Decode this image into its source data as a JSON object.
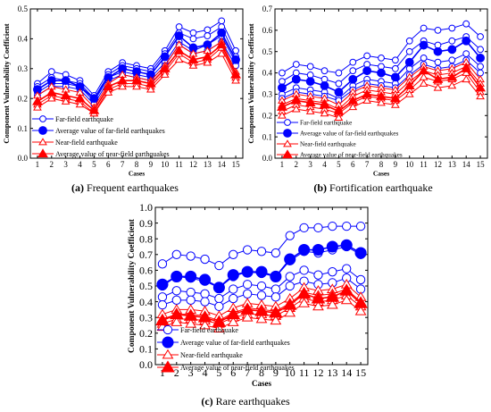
{
  "chart_data": [
    {
      "type": "line",
      "caption_label": "(a)",
      "caption_text": " Frequent earthquakes",
      "xlabel": "Cases",
      "ylabel": "Component Vulnerability Coefficient",
      "ylim": [
        0.0,
        0.5
      ],
      "yticks": [
        0.0,
        0.1,
        0.2,
        0.3,
        0.4,
        0.5
      ],
      "ytick_labels": [
        "0.0",
        "0.1",
        "0.2",
        "0.3",
        "0.4",
        "0.5"
      ],
      "x": [
        1,
        2,
        3,
        4,
        5,
        6,
        7,
        8,
        9,
        10,
        11,
        12,
        13,
        14,
        15
      ],
      "legend": [
        "Far-field earthquake",
        "Average value of far-field earthquakes",
        "Near-field earthquake",
        "Average value of near-field earthquakes"
      ],
      "series": [
        {
          "kind": "far-field",
          "values": [
            0.25,
            0.29,
            0.28,
            0.26,
            0.21,
            0.29,
            0.32,
            0.31,
            0.3,
            0.36,
            0.44,
            0.42,
            0.43,
            0.46,
            0.36
          ]
        },
        {
          "kind": "far-field",
          "values": [
            0.24,
            0.27,
            0.26,
            0.25,
            0.2,
            0.28,
            0.31,
            0.3,
            0.29,
            0.35,
            0.42,
            0.4,
            0.41,
            0.44,
            0.34
          ]
        },
        {
          "kind": "far-field",
          "values": [
            0.22,
            0.25,
            0.25,
            0.24,
            0.19,
            0.27,
            0.29,
            0.28,
            0.27,
            0.32,
            0.39,
            0.36,
            0.38,
            0.41,
            0.32
          ]
        },
        {
          "kind": "far-field",
          "values": [
            0.21,
            0.24,
            0.24,
            0.23,
            0.18,
            0.26,
            0.28,
            0.27,
            0.26,
            0.31,
            0.38,
            0.35,
            0.36,
            0.39,
            0.31
          ]
        },
        {
          "kind": "far-field-average",
          "values": [
            0.23,
            0.26,
            0.26,
            0.24,
            0.2,
            0.27,
            0.3,
            0.29,
            0.28,
            0.34,
            0.41,
            0.37,
            0.38,
            0.42,
            0.33
          ]
        },
        {
          "kind": "near-field",
          "values": [
            0.21,
            0.24,
            0.23,
            0.22,
            0.17,
            0.25,
            0.28,
            0.27,
            0.26,
            0.31,
            0.38,
            0.35,
            0.36,
            0.39,
            0.29
          ]
        },
        {
          "kind": "near-field",
          "values": [
            0.19,
            0.22,
            0.21,
            0.2,
            0.16,
            0.24,
            0.26,
            0.26,
            0.25,
            0.3,
            0.36,
            0.33,
            0.34,
            0.38,
            0.28
          ]
        },
        {
          "kind": "near-field",
          "values": [
            0.18,
            0.21,
            0.2,
            0.19,
            0.15,
            0.23,
            0.25,
            0.25,
            0.24,
            0.29,
            0.35,
            0.32,
            0.33,
            0.37,
            0.27
          ]
        },
        {
          "kind": "near-field",
          "values": [
            0.17,
            0.2,
            0.19,
            0.18,
            0.15,
            0.22,
            0.24,
            0.24,
            0.23,
            0.28,
            0.33,
            0.31,
            0.32,
            0.35,
            0.26
          ]
        },
        {
          "kind": "near-field-average",
          "values": [
            0.19,
            0.22,
            0.21,
            0.2,
            0.16,
            0.24,
            0.26,
            0.26,
            0.25,
            0.3,
            0.36,
            0.33,
            0.34,
            0.38,
            0.28
          ]
        }
      ]
    },
    {
      "type": "line",
      "caption_label": "(b)",
      "caption_text": " Fortification earthquake",
      "xlabel": "Cases",
      "ylabel": "Component Vulnerability Coefficient",
      "ylim": [
        0.0,
        0.7
      ],
      "yticks": [
        0.0,
        0.1,
        0.2,
        0.3,
        0.4,
        0.5,
        0.6,
        0.7
      ],
      "ytick_labels": [
        "0.0",
        "0.1",
        "0.2",
        "0.3",
        "0.4",
        "0.5",
        "0.6",
        "0.7"
      ],
      "x": [
        1,
        2,
        3,
        4,
        5,
        6,
        7,
        8,
        9,
        10,
        11,
        12,
        13,
        14,
        15
      ],
      "legend": [
        "Far-field earthquake",
        "Average value of far-field earthquakes",
        "Near-field earthquake",
        "Average value of near-field earthquakes"
      ],
      "series": [
        {
          "kind": "far-field",
          "values": [
            0.4,
            0.44,
            0.43,
            0.41,
            0.4,
            0.45,
            0.48,
            0.47,
            0.46,
            0.55,
            0.61,
            0.6,
            0.61,
            0.63,
            0.57
          ]
        },
        {
          "kind": "far-field",
          "values": [
            0.36,
            0.4,
            0.39,
            0.37,
            0.35,
            0.41,
            0.44,
            0.43,
            0.42,
            0.5,
            0.55,
            0.53,
            0.55,
            0.57,
            0.51
          ]
        },
        {
          "kind": "far-field",
          "values": [
            0.3,
            0.33,
            0.32,
            0.31,
            0.28,
            0.34,
            0.37,
            0.36,
            0.35,
            0.42,
            0.47,
            0.45,
            0.46,
            0.49,
            0.43
          ]
        },
        {
          "kind": "far-field",
          "values": [
            0.28,
            0.31,
            0.3,
            0.29,
            0.27,
            0.32,
            0.35,
            0.34,
            0.33,
            0.39,
            0.44,
            0.42,
            0.43,
            0.46,
            0.4
          ]
        },
        {
          "kind": "far-field-average",
          "values": [
            0.33,
            0.37,
            0.36,
            0.34,
            0.31,
            0.37,
            0.41,
            0.4,
            0.38,
            0.45,
            0.53,
            0.5,
            0.51,
            0.55,
            0.47
          ]
        },
        {
          "kind": "near-field",
          "values": [
            0.27,
            0.3,
            0.29,
            0.28,
            0.25,
            0.31,
            0.34,
            0.33,
            0.32,
            0.38,
            0.43,
            0.41,
            0.42,
            0.45,
            0.37
          ]
        },
        {
          "kind": "near-field",
          "values": [
            0.25,
            0.28,
            0.27,
            0.26,
            0.23,
            0.29,
            0.32,
            0.31,
            0.3,
            0.36,
            0.41,
            0.39,
            0.4,
            0.43,
            0.35
          ]
        },
        {
          "kind": "near-field",
          "values": [
            0.22,
            0.25,
            0.24,
            0.23,
            0.21,
            0.26,
            0.29,
            0.28,
            0.27,
            0.32,
            0.38,
            0.36,
            0.37,
            0.4,
            0.31
          ]
        },
        {
          "kind": "near-field",
          "values": [
            0.2,
            0.23,
            0.22,
            0.21,
            0.19,
            0.24,
            0.27,
            0.26,
            0.25,
            0.3,
            0.35,
            0.33,
            0.34,
            0.37,
            0.29
          ]
        },
        {
          "kind": "near-field-average",
          "values": [
            0.24,
            0.27,
            0.26,
            0.25,
            0.22,
            0.27,
            0.3,
            0.29,
            0.28,
            0.34,
            0.41,
            0.37,
            0.38,
            0.42,
            0.33
          ]
        }
      ]
    },
    {
      "type": "line",
      "caption_label": "(c)",
      "caption_text": " Rare earthquakes",
      "xlabel": "Cases",
      "ylabel": "Component Vulnerability Coefficient",
      "ylim": [
        0.0,
        1.0
      ],
      "yticks": [
        0.0,
        0.1,
        0.2,
        0.3,
        0.4,
        0.5,
        0.6,
        0.7,
        0.8,
        0.9,
        1.0
      ],
      "ytick_labels": [
        "0.0",
        "0.1",
        "0.2",
        "0.3",
        "0.4",
        "0.5",
        "0.6",
        "0.7",
        "0.8",
        "0.9",
        "1.0"
      ],
      "x": [
        1,
        2,
        3,
        4,
        5,
        6,
        7,
        8,
        9,
        10,
        11,
        12,
        13,
        14,
        15
      ],
      "legend": [
        "Far-field earthquake",
        "Average value of far-field earthquakes",
        "Near-field earthquake",
        "Average value of near-field earthquakes"
      ],
      "series": [
        {
          "kind": "far-field",
          "values": [
            0.64,
            0.7,
            0.69,
            0.67,
            0.63,
            0.7,
            0.73,
            0.72,
            0.71,
            0.82,
            0.87,
            0.87,
            0.88,
            0.88,
            0.88
          ]
        },
        {
          "kind": "far-field",
          "values": [
            0.5,
            0.56,
            0.55,
            0.53,
            0.49,
            0.56,
            0.59,
            0.58,
            0.56,
            0.66,
            0.72,
            0.71,
            0.73,
            0.75,
            0.7
          ]
        },
        {
          "kind": "far-field",
          "values": [
            0.43,
            0.47,
            0.46,
            0.45,
            0.42,
            0.48,
            0.51,
            0.5,
            0.48,
            0.56,
            0.6,
            0.57,
            0.59,
            0.61,
            0.54
          ]
        },
        {
          "kind": "far-field",
          "values": [
            0.38,
            0.41,
            0.41,
            0.4,
            0.37,
            0.42,
            0.45,
            0.44,
            0.43,
            0.5,
            0.53,
            0.51,
            0.52,
            0.55,
            0.48
          ]
        },
        {
          "kind": "far-field-average",
          "values": [
            0.51,
            0.56,
            0.56,
            0.54,
            0.49,
            0.57,
            0.59,
            0.59,
            0.56,
            0.67,
            0.73,
            0.73,
            0.75,
            0.76,
            0.71
          ]
        },
        {
          "kind": "near-field",
          "values": [
            0.32,
            0.35,
            0.35,
            0.34,
            0.31,
            0.36,
            0.39,
            0.38,
            0.37,
            0.42,
            0.49,
            0.47,
            0.48,
            0.51,
            0.43
          ]
        },
        {
          "kind": "near-field",
          "values": [
            0.29,
            0.32,
            0.32,
            0.31,
            0.28,
            0.33,
            0.36,
            0.35,
            0.34,
            0.39,
            0.46,
            0.44,
            0.45,
            0.48,
            0.4
          ]
        },
        {
          "kind": "near-field",
          "values": [
            0.26,
            0.29,
            0.29,
            0.28,
            0.26,
            0.3,
            0.32,
            0.32,
            0.31,
            0.36,
            0.42,
            0.4,
            0.41,
            0.44,
            0.37
          ]
        },
        {
          "kind": "near-field",
          "values": [
            0.24,
            0.27,
            0.26,
            0.25,
            0.23,
            0.27,
            0.3,
            0.29,
            0.28,
            0.33,
            0.39,
            0.37,
            0.38,
            0.41,
            0.34
          ]
        },
        {
          "kind": "near-field-average",
          "values": [
            0.28,
            0.32,
            0.31,
            0.3,
            0.27,
            0.32,
            0.35,
            0.34,
            0.33,
            0.38,
            0.45,
            0.42,
            0.43,
            0.47,
            0.39
          ]
        }
      ]
    }
  ],
  "colors": {
    "far_field": "#0000ff",
    "near_field": "#ff0000",
    "axis": "#000000"
  }
}
